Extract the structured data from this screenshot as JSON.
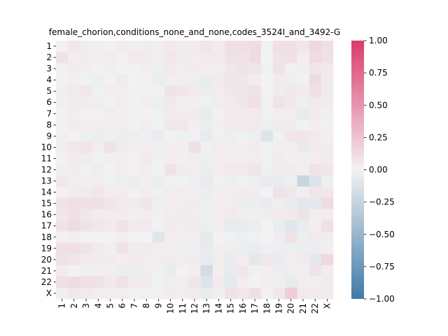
{
  "chart_data": {
    "type": "heatmap",
    "title": "female_chorion,conditions_none_and_none,codes_3524I_and_3492-G",
    "xlabel": "",
    "ylabel": "",
    "labels": [
      "1",
      "2",
      "3",
      "4",
      "5",
      "6",
      "7",
      "8",
      "9",
      "10",
      "11",
      "12",
      "13",
      "14",
      "15",
      "16",
      "17",
      "18",
      "19",
      "20",
      "21",
      "22",
      "X"
    ],
    "colorbar": {
      "min": -1.0,
      "max": 1.0,
      "ticks": [
        1.0,
        0.75,
        0.5,
        0.25,
        0.0,
        -0.25,
        -0.5,
        -0.75,
        -1.0
      ],
      "tick_labels": [
        "1.00",
        "0.75",
        "0.50",
        "0.25",
        "0.00",
        "−0.25",
        "−0.50",
        "−0.75",
        "−1.00"
      ],
      "colors": {
        "low": "#3f7aa8",
        "mid": "#f2f2f2",
        "high": "#dc3a6b"
      }
    },
    "values": [
      [
        0.01,
        0.06,
        0.03,
        0.02,
        0.01,
        0.04,
        0.02,
        0.03,
        -0.02,
        0.05,
        0.03,
        0.04,
        0.07,
        0.03,
        0.1,
        0.1,
        0.12,
        -0.01,
        0.1,
        0.1,
        0.06,
        0.14,
        0.1
      ],
      [
        0.08,
        0.02,
        0.04,
        0.03,
        0.03,
        0.01,
        0.05,
        0.04,
        0.02,
        0.06,
        0.04,
        0.03,
        0.05,
        0.04,
        0.09,
        0.08,
        0.12,
        0.0,
        0.08,
        0.1,
        0.02,
        0.12,
        0.09
      ],
      [
        0.01,
        0.04,
        0.02,
        0.01,
        0.02,
        0.01,
        0.01,
        0.02,
        -0.03,
        0.05,
        0.03,
        0.04,
        0.02,
        0.02,
        0.06,
        0.08,
        0.07,
        -0.02,
        0.08,
        -0.02,
        0.02,
        0.07,
        0.05
      ],
      [
        0.01,
        0.02,
        -0.02,
        -0.03,
        0.01,
        -0.04,
        0.0,
        0.01,
        -0.04,
        0.02,
        0.03,
        -0.03,
        -0.05,
        0.04,
        0.07,
        0.06,
        0.03,
        0.0,
        0.04,
        0.03,
        -0.01,
        0.12,
        0.04
      ],
      [
        0.02,
        0.05,
        0.06,
        -0.02,
        0.03,
        0.02,
        0.01,
        0.01,
        -0.02,
        0.08,
        0.06,
        0.05,
        -0.04,
        0.03,
        0.06,
        0.07,
        0.08,
        0.0,
        0.04,
        0.06,
        0.04,
        0.1,
        0.04
      ],
      [
        0.02,
        0.04,
        0.03,
        -0.03,
        0.01,
        0.03,
        0.01,
        0.02,
        -0.03,
        0.05,
        0.02,
        0.02,
        -0.02,
        0.03,
        0.05,
        0.06,
        0.1,
        -0.02,
        0.08,
        0.05,
        0.02,
        0.05,
        0.04
      ],
      [
        0.01,
        0.03,
        0.01,
        -0.02,
        0.03,
        0.02,
        -0.01,
        0.01,
        -0.02,
        0.05,
        0.03,
        0.04,
        -0.05,
        0.01,
        0.05,
        0.04,
        0.05,
        -0.01,
        0.03,
        0.03,
        -0.06,
        0.04,
        0.02
      ],
      [
        0.01,
        0.04,
        0.02,
        0.02,
        0.02,
        0.02,
        0.01,
        0.03,
        -0.01,
        0.06,
        0.06,
        0.02,
        -0.04,
        0.02,
        0.05,
        0.05,
        0.05,
        -0.03,
        0.05,
        0.04,
        -0.01,
        0.02,
        -0.02
      ],
      [
        -0.02,
        0.01,
        -0.03,
        -0.04,
        -0.03,
        -0.04,
        -0.03,
        -0.02,
        -0.05,
        -0.01,
        -0.02,
        -0.02,
        -0.06,
        -0.02,
        -0.03,
        -0.02,
        -0.03,
        -0.12,
        -0.02,
        0.06,
        0.07,
        0.05,
        0.02
      ],
      [
        0.03,
        0.06,
        0.07,
        0.03,
        0.08,
        0.04,
        0.02,
        0.03,
        -0.03,
        0.02,
        0.03,
        0.1,
        -0.02,
        0.03,
        0.03,
        0.02,
        0.04,
        -0.02,
        0.03,
        0.02,
        -0.06,
        0.04,
        0.04
      ],
      [
        0.01,
        0.03,
        0.03,
        0.01,
        0.02,
        0.03,
        0.01,
        0.05,
        -0.02,
        0.02,
        0.02,
        0.03,
        -0.03,
        0.02,
        0.03,
        -0.03,
        0.03,
        -0.02,
        0.04,
        0.02,
        0.02,
        0.03,
        0.04
      ],
      [
        0.02,
        0.04,
        0.01,
        -0.03,
        0.01,
        0.03,
        0.01,
        0.03,
        -0.02,
        0.08,
        0.04,
        0.03,
        -0.04,
        0.02,
        0.05,
        0.05,
        0.07,
        -0.02,
        0.04,
        0.04,
        0.02,
        0.08,
        0.06
      ],
      [
        0.06,
        0.03,
        0.02,
        0.03,
        -0.02,
        -0.03,
        -0.04,
        0.02,
        -0.04,
        -0.02,
        -0.01,
        -0.03,
        -0.06,
        -0.02,
        -0.03,
        -0.02,
        -0.03,
        -0.06,
        -0.05,
        -0.03,
        -0.24,
        -0.12,
        -0.03
      ],
      [
        0.01,
        0.04,
        0.04,
        0.06,
        0.03,
        0.03,
        0.01,
        0.03,
        -0.02,
        0.03,
        0.03,
        0.02,
        -0.04,
        0.02,
        0.03,
        0.04,
        0.03,
        0.0,
        0.08,
        0.06,
        0.02,
        0.07,
        0.06
      ],
      [
        0.08,
        0.1,
        0.1,
        0.09,
        0.07,
        0.05,
        0.04,
        0.07,
        -0.03,
        0.03,
        0.03,
        0.04,
        -0.03,
        0.02,
        0.03,
        -0.04,
        -0.04,
        -0.05,
        -0.03,
        -0.05,
        -0.08,
        -0.08,
        0.12
      ],
      [
        0.06,
        0.1,
        0.06,
        0.04,
        0.03,
        0.03,
        0.02,
        0.03,
        -0.02,
        0.03,
        0.04,
        0.03,
        -0.03,
        0.02,
        0.05,
        0.03,
        0.02,
        -0.03,
        0.04,
        0.05,
        0.08,
        0.03,
        0.04
      ],
      [
        0.08,
        0.12,
        0.08,
        0.06,
        0.05,
        0.08,
        0.04,
        0.05,
        0.01,
        0.04,
        0.03,
        0.04,
        -0.03,
        0.03,
        -0.06,
        -0.06,
        -0.04,
        0.0,
        -0.05,
        -0.1,
        -0.05,
        0.02,
        0.1
      ],
      [
        0.01,
        0.02,
        0.0,
        0.0,
        0.0,
        0.02,
        0.0,
        0.0,
        -0.1,
        0.02,
        0.02,
        0.03,
        -0.07,
        0.01,
        -0.02,
        -0.03,
        -0.02,
        0.0,
        -0.03,
        0.08,
        -0.03,
        0.05,
        0.03
      ],
      [
        0.1,
        0.1,
        0.08,
        0.05,
        0.02,
        0.08,
        0.04,
        0.05,
        0.03,
        0.02,
        -0.03,
        -0.03,
        -0.06,
        0.02,
        -0.03,
        -0.04,
        -0.05,
        -0.02,
        -0.03,
        -0.03,
        -0.04,
        -0.04,
        0.02
      ],
      [
        0.08,
        0.07,
        0.05,
        0.04,
        0.04,
        0.02,
        0.04,
        0.03,
        0.03,
        0.04,
        0.03,
        0.04,
        -0.06,
        0.03,
        -0.05,
        0.02,
        -0.08,
        0.06,
        -0.05,
        0.02,
        0.05,
        -0.08,
        0.14
      ],
      [
        0.04,
        0.0,
        -0.03,
        0.02,
        0.02,
        -0.04,
        -0.04,
        0.03,
        -0.02,
        -0.05,
        0.0,
        0.02,
        -0.18,
        0.02,
        -0.06,
        0.06,
        -0.02,
        0.02,
        -0.03,
        0.03,
        0.02,
        0.08,
        0.03
      ],
      [
        0.1,
        0.12,
        0.1,
        0.09,
        0.05,
        0.09,
        0.04,
        0.04,
        -0.02,
        0.03,
        0.03,
        0.07,
        -0.12,
        0.05,
        -0.07,
        0.03,
        0.0,
        0.02,
        -0.03,
        -0.06,
        0.03,
        0.02,
        0.04
      ],
      [
        0.02,
        0.06,
        0.05,
        0.03,
        0.02,
        0.03,
        0.01,
        -0.02,
        -0.02,
        0.04,
        0.03,
        0.04,
        -0.05,
        0.02,
        0.09,
        0.06,
        0.1,
        0.01,
        0.06,
        0.2,
        0.05,
        0.04,
        0.04
      ]
    ]
  }
}
